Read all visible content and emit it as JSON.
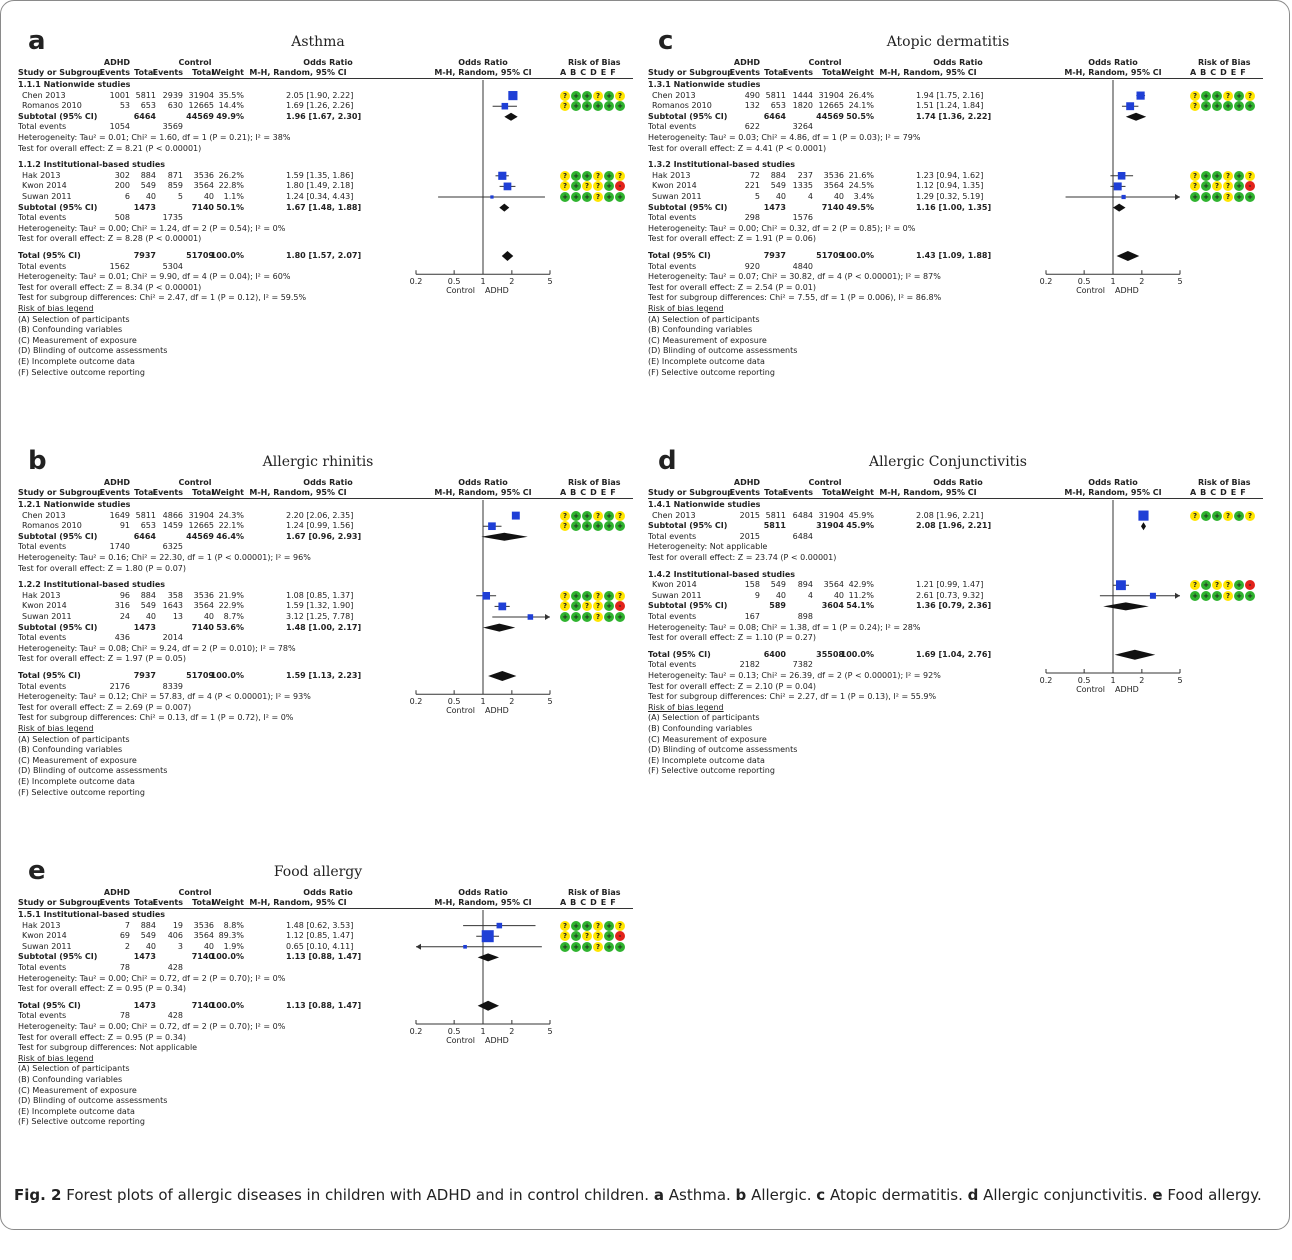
{
  "headers": {
    "study": "Study or Subgroup",
    "g_adhd": "ADHD",
    "g_control": "Control",
    "events": "Events",
    "total": "Total",
    "weight": "Weight",
    "or_title": "Odds Ratio",
    "or_sub": "M-H, Random, 95% CI",
    "rob": "Risk of Bias",
    "rob_letters": "A B C D E F"
  },
  "axis": {
    "ticks": [
      "0.2",
      "0.5",
      "1",
      "2",
      "5"
    ],
    "tick_values": [
      0.2,
      0.5,
      1,
      2,
      5
    ],
    "left_label": "Control",
    "right_label": "ADHD"
  },
  "rob_legend": [
    "Risk of bias legend",
    "(A) Selection of participants",
    "(B) Confounding variables",
    "(C) Measurement of exposure",
    "(D) Blinding of outcome assessments",
    "(E) Incomplete outcome data",
    "(F) Selective outcome reporting"
  ],
  "rob_colors": {
    "+": "#2fb32f",
    "?": "#ffe600",
    "-": "#e2231a"
  },
  "panels": [
    {
      "id": "a",
      "letter": "a",
      "title": "Asthma",
      "groups": [
        {
          "name": "1.1.1 Nationwide studies",
          "studies": [
            {
              "name": "Chen 2013",
              "e1": "1001",
              "t1": "5811",
              "e2": "2939",
              "t2": "31904",
              "w": "35.5%",
              "ci": "2.05 [1.90, 2.22]",
              "or": 2.05,
              "lo": 1.9,
              "hi": 2.22,
              "rob": [
                "?",
                "+",
                "+",
                "?",
                "+",
                "?"
              ]
            },
            {
              "name": "Romanos 2010",
              "e1": "53",
              "t1": "653",
              "e2": "630",
              "t2": "12665",
              "w": "14.4%",
              "ci": "1.69 [1.26, 2.26]",
              "or": 1.69,
              "lo": 1.26,
              "hi": 2.26,
              "rob": [
                "?",
                "+",
                "+",
                "+",
                "+",
                "+"
              ]
            }
          ],
          "subtotal": {
            "t1": "6464",
            "t2": "44569",
            "w": "49.9%",
            "ci": "1.96 [1.67, 2.30]",
            "or": 1.96,
            "lo": 1.67,
            "hi": 2.3
          },
          "te": {
            "e1": "1054",
            "e2": "3569"
          },
          "het": "Heterogeneity: Tau² = 0.01; Chi² = 1.60, df = 1 (P = 0.21); I² = 38%",
          "test": "Test for overall effect: Z = 8.21 (P < 0.00001)"
        },
        {
          "name": "1.1.2 Institutional-based studies",
          "studies": [
            {
              "name": "Hak 2013",
              "e1": "302",
              "t1": "884",
              "e2": "871",
              "t2": "3536",
              "w": "26.2%",
              "ci": "1.59 [1.35, 1.86]",
              "or": 1.59,
              "lo": 1.35,
              "hi": 1.86,
              "rob": [
                "?",
                "+",
                "+",
                "?",
                "+",
                "?"
              ]
            },
            {
              "name": "Kwon 2014",
              "e1": "200",
              "t1": "549",
              "e2": "859",
              "t2": "3564",
              "w": "22.8%",
              "ci": "1.80 [1.49, 2.18]",
              "or": 1.8,
              "lo": 1.49,
              "hi": 2.18,
              "rob": [
                "?",
                "+",
                "?",
                "?",
                "+",
                "-"
              ]
            },
            {
              "name": "Suwan 2011",
              "e1": "6",
              "t1": "40",
              "e2": "5",
              "t2": "40",
              "w": "1.1%",
              "ci": "1.24 [0.34, 4.43]",
              "or": 1.24,
              "lo": 0.34,
              "hi": 4.43,
              "rob": [
                "+",
                "+",
                "+",
                "?",
                "+",
                "+"
              ]
            }
          ],
          "subtotal": {
            "t1": "1473",
            "t2": "7140",
            "w": "50.1%",
            "ci": "1.67 [1.48, 1.88]",
            "or": 1.67,
            "lo": 1.48,
            "hi": 1.88
          },
          "te": {
            "e1": "508",
            "e2": "1735"
          },
          "het": "Heterogeneity: Tau² = 0.00; Chi² = 1.24, df = 2 (P = 0.54); I² = 0%",
          "test": "Test for overall effect: Z = 8.28 (P < 0.00001)"
        }
      ],
      "total": {
        "t1": "7937",
        "t2": "51709",
        "w": "100.0%",
        "ci": "1.80 [1.57, 2.07]",
        "or": 1.8,
        "lo": 1.57,
        "hi": 2.07
      },
      "total_events": {
        "e1": "1562",
        "e2": "5304"
      },
      "lines": [
        "Heterogeneity: Tau² = 0.01; Chi² = 9.90, df = 4 (P = 0.04); I² = 60%",
        "Test for overall effect: Z = 8.34 (P < 0.00001)",
        "Test for subgroup differences: Chi² = 2.47, df = 1 (P = 0.12), I² = 59.5%"
      ]
    },
    {
      "id": "b",
      "letter": "b",
      "title": "Allergic rhinitis",
      "groups": [
        {
          "name": "1.2.1 Nationwide studies",
          "studies": [
            {
              "name": "Chen 2013",
              "e1": "1649",
              "t1": "5811",
              "e2": "4866",
              "t2": "31904",
              "w": "24.3%",
              "ci": "2.20 [2.06, 2.35]",
              "or": 2.2,
              "lo": 2.06,
              "hi": 2.35,
              "rob": [
                "?",
                "+",
                "+",
                "?",
                "+",
                "?"
              ]
            },
            {
              "name": "Romanos 2010",
              "e1": "91",
              "t1": "653",
              "e2": "1459",
              "t2": "12665",
              "w": "22.1%",
              "ci": "1.24 [0.99, 1.56]",
              "or": 1.24,
              "lo": 0.99,
              "hi": 1.56,
              "rob": [
                "?",
                "+",
                "+",
                "+",
                "+",
                "+"
              ]
            }
          ],
          "subtotal": {
            "t1": "6464",
            "t2": "44569",
            "w": "46.4%",
            "ci": "1.67 [0.96, 2.93]",
            "or": 1.67,
            "lo": 0.96,
            "hi": 2.93
          },
          "te": {
            "e1": "1740",
            "e2": "6325"
          },
          "het": "Heterogeneity: Tau² = 0.16; Chi² = 22.30, df = 1 (P < 0.00001); I² = 96%",
          "test": "Test for overall effect: Z = 1.80 (P = 0.07)"
        },
        {
          "name": "1.2.2 Institutional-based studies",
          "studies": [
            {
              "name": "Hak 2013",
              "e1": "96",
              "t1": "884",
              "e2": "358",
              "t2": "3536",
              "w": "21.9%",
              "ci": "1.08 [0.85, 1.37]",
              "or": 1.08,
              "lo": 0.85,
              "hi": 1.37,
              "rob": [
                "?",
                "+",
                "+",
                "?",
                "+",
                "?"
              ]
            },
            {
              "name": "Kwon 2014",
              "e1": "316",
              "t1": "549",
              "e2": "1643",
              "t2": "3564",
              "w": "22.9%",
              "ci": "1.59 [1.32, 1.90]",
              "or": 1.59,
              "lo": 1.32,
              "hi": 1.9,
              "rob": [
                "?",
                "+",
                "?",
                "?",
                "+",
                "-"
              ]
            },
            {
              "name": "Suwan 2011",
              "e1": "24",
              "t1": "40",
              "e2": "13",
              "t2": "40",
              "w": "8.7%",
              "ci": "3.12 [1.25, 7.78]",
              "or": 3.12,
              "lo": 1.25,
              "hi": 7.78,
              "rob": [
                "+",
                "+",
                "+",
                "?",
                "+",
                "+"
              ]
            }
          ],
          "subtotal": {
            "t1": "1473",
            "t2": "7140",
            "w": "53.6%",
            "ci": "1.48 [1.00, 2.17]",
            "or": 1.48,
            "lo": 1.0,
            "hi": 2.17
          },
          "te": {
            "e1": "436",
            "e2": "2014"
          },
          "het": "Heterogeneity: Tau² = 0.08; Chi² = 9.24, df = 2 (P = 0.010); I² = 78%",
          "test": "Test for overall effect: Z = 1.97 (P = 0.05)"
        }
      ],
      "total": {
        "t1": "7937",
        "t2": "51709",
        "w": "100.0%",
        "ci": "1.59 [1.13, 2.23]",
        "or": 1.59,
        "lo": 1.13,
        "hi": 2.23
      },
      "total_events": {
        "e1": "2176",
        "e2": "8339"
      },
      "lines": [
        "Heterogeneity: Tau² = 0.12; Chi² = 57.83, df = 4 (P < 0.00001); I² = 93%",
        "Test for overall effect: Z = 2.69 (P = 0.007)",
        "Test for subgroup differences: Chi² = 0.13, df = 1 (P = 0.72), I² = 0%"
      ]
    },
    {
      "id": "c",
      "letter": "c",
      "title": "Atopic dermatitis",
      "groups": [
        {
          "name": "1.3.1 Nationwide studies",
          "studies": [
            {
              "name": "Chen 2013",
              "e1": "490",
              "t1": "5811",
              "e2": "1444",
              "t2": "31904",
              "w": "26.4%",
              "ci": "1.94 [1.75, 2.16]",
              "or": 1.94,
              "lo": 1.75,
              "hi": 2.16,
              "rob": [
                "?",
                "+",
                "+",
                "?",
                "+",
                "?"
              ]
            },
            {
              "name": "Romanos 2010",
              "e1": "132",
              "t1": "653",
              "e2": "1820",
              "t2": "12665",
              "w": "24.1%",
              "ci": "1.51 [1.24, 1.84]",
              "or": 1.51,
              "lo": 1.24,
              "hi": 1.84,
              "rob": [
                "?",
                "+",
                "+",
                "+",
                "+",
                "+"
              ]
            }
          ],
          "subtotal": {
            "t1": "6464",
            "t2": "44569",
            "w": "50.5%",
            "ci": "1.74 [1.36, 2.22]",
            "or": 1.74,
            "lo": 1.36,
            "hi": 2.22
          },
          "te": {
            "e1": "622",
            "e2": "3264"
          },
          "het": "Heterogeneity: Tau² = 0.03; Chi² = 4.86, df = 1 (P = 0.03); I² = 79%",
          "test": "Test for overall effect: Z = 4.41 (P < 0.0001)"
        },
        {
          "name": "1.3.2 Institutional-based studies",
          "studies": [
            {
              "name": "Hak 2013",
              "e1": "72",
              "t1": "884",
              "e2": "237",
              "t2": "3536",
              "w": "21.6%",
              "ci": "1.23 [0.94, 1.62]",
              "or": 1.23,
              "lo": 0.94,
              "hi": 1.62,
              "rob": [
                "?",
                "+",
                "+",
                "?",
                "+",
                "?"
              ]
            },
            {
              "name": "Kwon 2014",
              "e1": "221",
              "t1": "549",
              "e2": "1335",
              "t2": "3564",
              "w": "24.5%",
              "ci": "1.12 [0.94, 1.35]",
              "or": 1.12,
              "lo": 0.94,
              "hi": 1.35,
              "rob": [
                "?",
                "+",
                "?",
                "?",
                "+",
                "-"
              ]
            },
            {
              "name": "Suwan 2011",
              "e1": "5",
              "t1": "40",
              "e2": "4",
              "t2": "40",
              "w": "3.4%",
              "ci": "1.29 [0.32, 5.19]",
              "or": 1.29,
              "lo": 0.32,
              "hi": 5.19,
              "rob": [
                "+",
                "+",
                "+",
                "?",
                "+",
                "+"
              ]
            }
          ],
          "subtotal": {
            "t1": "1473",
            "t2": "7140",
            "w": "49.5%",
            "ci": "1.16 [1.00, 1.35]",
            "or": 1.16,
            "lo": 1.0,
            "hi": 1.35
          },
          "te": {
            "e1": "298",
            "e2": "1576"
          },
          "het": "Heterogeneity: Tau² = 0.00; Chi² = 0.32, df = 2 (P = 0.85); I² = 0%",
          "test": "Test for overall effect: Z = 1.91 (P = 0.06)"
        }
      ],
      "total": {
        "t1": "7937",
        "t2": "51709",
        "w": "100.0%",
        "ci": "1.43 [1.09, 1.88]",
        "or": 1.43,
        "lo": 1.09,
        "hi": 1.88
      },
      "total_events": {
        "e1": "920",
        "e2": "4840"
      },
      "lines": [
        "Heterogeneity: Tau² = 0.07; Chi² = 30.82, df = 4 (P < 0.00001); I² = 87%",
        "Test for overall effect: Z = 2.54 (P = 0.01)",
        "Test for subgroup differences: Chi² = 7.55, df = 1 (P = 0.006), I² = 86.8%"
      ]
    },
    {
      "id": "d",
      "letter": "d",
      "title": "Allergic Conjunctivitis",
      "groups": [
        {
          "name": "1.4.1 Nationwide studies",
          "studies": [
            {
              "name": "Chen 2013",
              "e1": "2015",
              "t1": "5811",
              "e2": "6484",
              "t2": "31904",
              "w": "45.9%",
              "ci": "2.08 [1.96, 2.21]",
              "or": 2.08,
              "lo": 1.96,
              "hi": 2.21,
              "rob": [
                "?",
                "+",
                "+",
                "?",
                "+",
                "?"
              ]
            }
          ],
          "subtotal": {
            "t1": "5811",
            "t2": "31904",
            "w": "45.9%",
            "ci": "2.08 [1.96, 2.21]",
            "or": 2.08,
            "lo": 1.96,
            "hi": 2.21
          },
          "te": {
            "e1": "2015",
            "e2": "6484"
          },
          "het": "Heterogeneity: Not applicable",
          "test": "Test for overall effect: Z = 23.74 (P < 0.00001)"
        },
        {
          "name": "1.4.2 Institutional-based studies",
          "studies": [
            {
              "name": "Kwon 2014",
              "e1": "158",
              "t1": "549",
              "e2": "894",
              "t2": "3564",
              "w": "42.9%",
              "ci": "1.21 [0.99, 1.47]",
              "or": 1.21,
              "lo": 0.99,
              "hi": 1.47,
              "rob": [
                "?",
                "+",
                "?",
                "?",
                "+",
                "-"
              ]
            },
            {
              "name": "Suwan 2011",
              "e1": "9",
              "t1": "40",
              "e2": "4",
              "t2": "40",
              "w": "11.2%",
              "ci": "2.61 [0.73, 9.32]",
              "or": 2.61,
              "lo": 0.73,
              "hi": 9.32,
              "rob": [
                "+",
                "+",
                "+",
                "?",
                "+",
                "+"
              ]
            }
          ],
          "subtotal": {
            "t1": "589",
            "t2": "3604",
            "w": "54.1%",
            "ci": "1.36 [0.79, 2.36]",
            "or": 1.36,
            "lo": 0.79,
            "hi": 2.36
          },
          "te": {
            "e1": "167",
            "e2": "898"
          },
          "het": "Heterogeneity: Tau² = 0.08; Chi² = 1.38, df = 1 (P = 0.24); I² = 28%",
          "test": "Test for overall effect: Z = 1.10 (P = 0.27)"
        }
      ],
      "total": {
        "t1": "6400",
        "t2": "35508",
        "w": "100.0%",
        "ci": "1.69 [1.04, 2.76]",
        "or": 1.69,
        "lo": 1.04,
        "hi": 2.76
      },
      "total_events": {
        "e1": "2182",
        "e2": "7382"
      },
      "lines": [
        "Heterogeneity: Tau² = 0.13; Chi² = 26.39, df = 2 (P < 0.00001); I² = 92%",
        "Test for overall effect: Z = 2.10 (P = 0.04)",
        "Test for subgroup differences: Chi² = 2.27, df = 1 (P = 0.13), I² = 55.9%"
      ]
    },
    {
      "id": "e",
      "letter": "e",
      "title": "Food allergy",
      "groups": [
        {
          "name": "1.5.1 Institutional-based studies",
          "studies": [
            {
              "name": "Hak 2013",
              "e1": "7",
              "t1": "884",
              "e2": "19",
              "t2": "3536",
              "w": "8.8%",
              "ci": "1.48 [0.62, 3.53]",
              "or": 1.48,
              "lo": 0.62,
              "hi": 3.53,
              "rob": [
                "?",
                "+",
                "+",
                "?",
                "+",
                "?"
              ]
            },
            {
              "name": "Kwon 2014",
              "e1": "69",
              "t1": "549",
              "e2": "406",
              "t2": "3564",
              "w": "89.3%",
              "ci": "1.12 [0.85, 1.47]",
              "or": 1.12,
              "lo": 0.85,
              "hi": 1.47,
              "rob": [
                "?",
                "+",
                "?",
                "?",
                "+",
                "-"
              ]
            },
            {
              "name": "Suwan 2011",
              "e1": "2",
              "t1": "40",
              "e2": "3",
              "t2": "40",
              "w": "1.9%",
              "ci": "0.65 [0.10, 4.11]",
              "or": 0.65,
              "lo": 0.1,
              "hi": 4.11,
              "rob": [
                "+",
                "+",
                "+",
                "?",
                "+",
                "+"
              ]
            }
          ],
          "subtotal": {
            "t1": "1473",
            "t2": "7140",
            "w": "100.0%",
            "ci": "1.13 [0.88, 1.47]",
            "or": 1.13,
            "lo": 0.88,
            "hi": 1.47
          },
          "te": {
            "e1": "78",
            "e2": "428"
          },
          "het": "Heterogeneity: Tau² = 0.00; Chi² = 0.72, df = 2 (P = 0.70); I² = 0%",
          "test": "Test for overall effect: Z = 0.95 (P = 0.34)"
        }
      ],
      "total": {
        "t1": "1473",
        "t2": "7140",
        "w": "100.0%",
        "ci": "1.13 [0.88, 1.47]",
        "or": 1.13,
        "lo": 0.88,
        "hi": 1.47
      },
      "total_events": {
        "e1": "78",
        "e2": "428"
      },
      "lines": [
        "Heterogeneity: Tau² = 0.00; Chi² = 0.72, df = 2 (P = 0.70); I² = 0%",
        "Test for overall effect: Z = 0.95 (P = 0.34)",
        "Test for subgroup differences: Not applicable"
      ]
    }
  ],
  "caption": {
    "fig": "Fig. 2",
    "text": " Forest plots of allergic diseases in children with ADHD and in control children. ",
    "parts": [
      {
        "l": "a",
        "t": " Asthma. "
      },
      {
        "l": "b",
        "t": " Allergic. "
      },
      {
        "l": "c",
        "t": " Atopic dermatitis. "
      },
      {
        "l": "d",
        "t": " Allergic conjunctivitis. "
      },
      {
        "l": "e",
        "t": " Food allergy."
      }
    ]
  }
}
